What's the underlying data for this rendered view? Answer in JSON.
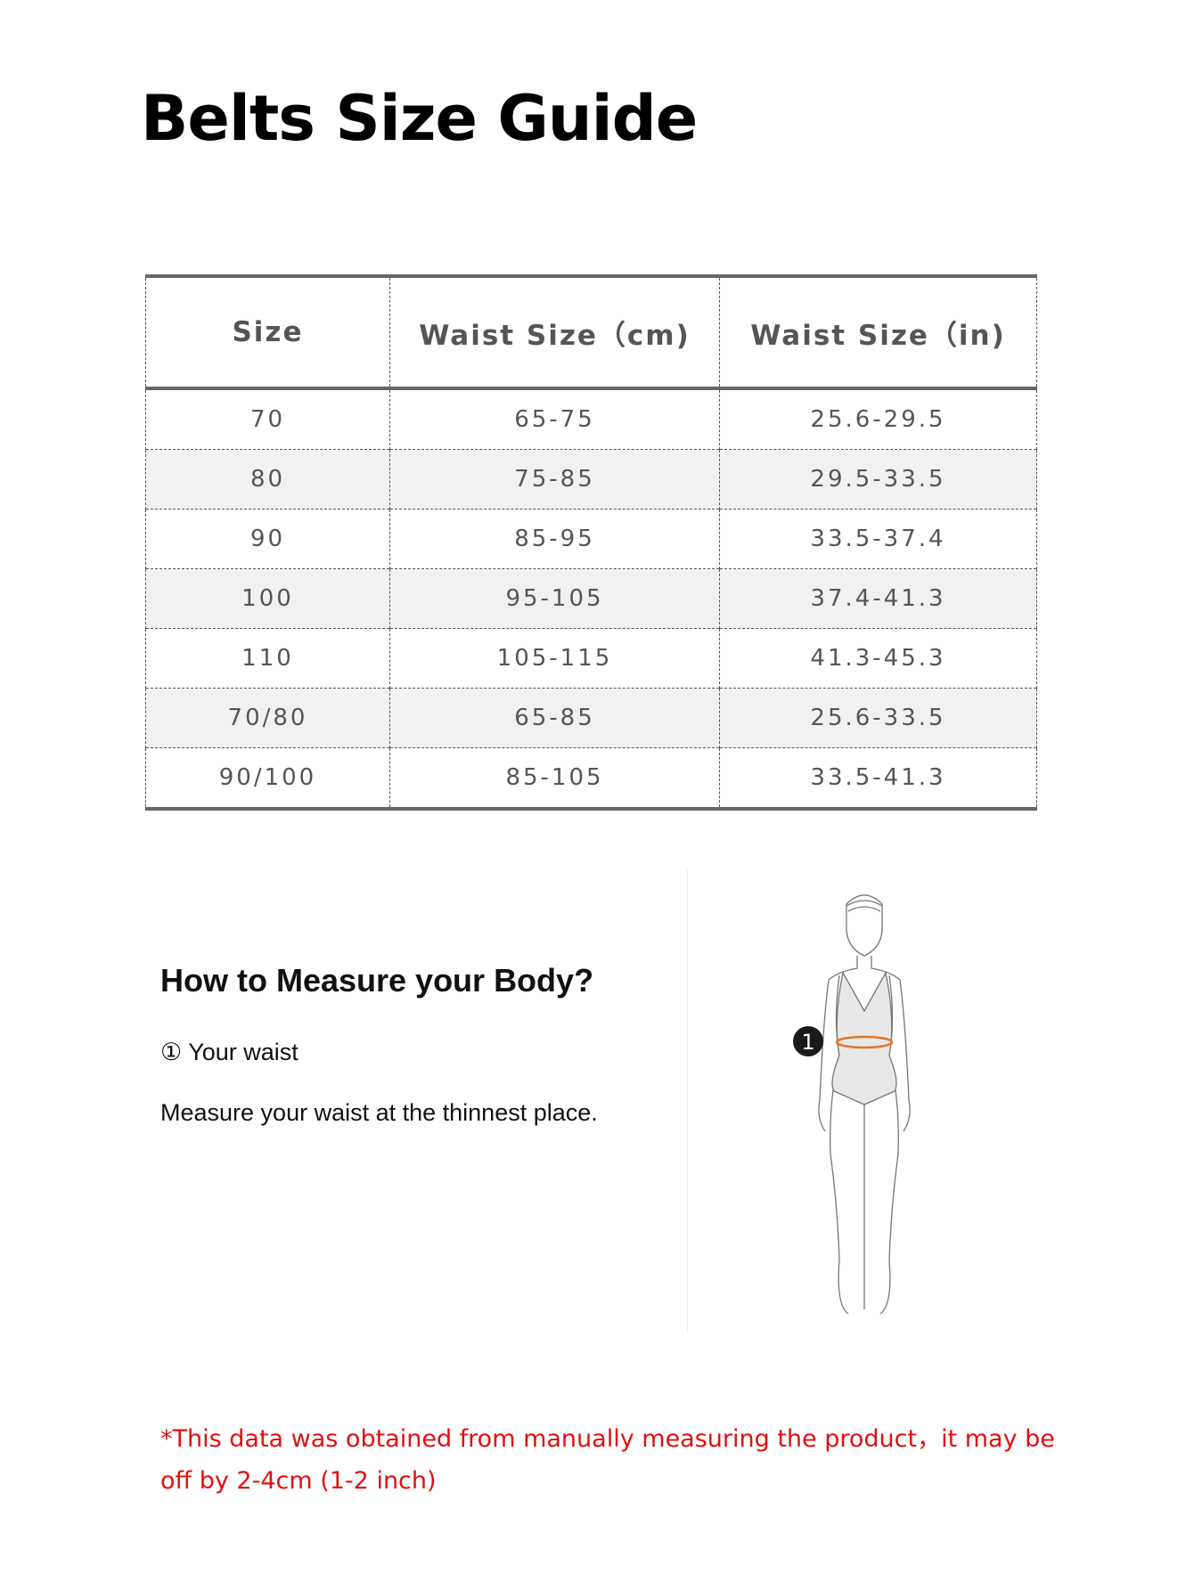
{
  "title": "Belts Size Guide",
  "table": {
    "headers": [
      "Size",
      "Waist Size（cm)",
      "Waist Size（in)"
    ],
    "rows": [
      [
        "70",
        "65-75",
        "25.6-29.5"
      ],
      [
        "80",
        "75-85",
        "29.5-33.5"
      ],
      [
        "90",
        "85-95",
        "33.5-37.4"
      ],
      [
        "100",
        "95-105",
        "37.4-41.3"
      ],
      [
        "110",
        "105-115",
        "41.3-45.3"
      ],
      [
        "70/80",
        "65-85",
        "25.6-33.5"
      ],
      [
        "90/100",
        "85-105",
        "33.5-41.3"
      ]
    ]
  },
  "measure": {
    "heading": "How to Measure your Body?",
    "step": "① Your waist",
    "instruction": "Measure your waist at the thinnest place.",
    "marker": "1",
    "waist_color": "#e0762a"
  },
  "note": "*This data was obtained from manually measuring the product，it may be off by 2-4cm (1-2 inch)"
}
